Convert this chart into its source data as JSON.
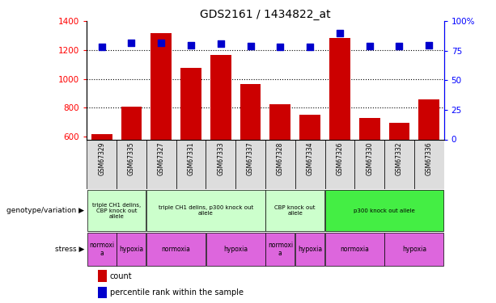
{
  "title": "GDS2161 / 1434822_at",
  "samples": [
    "GSM67329",
    "GSM67335",
    "GSM67327",
    "GSM67331",
    "GSM67333",
    "GSM67337",
    "GSM67328",
    "GSM67334",
    "GSM67326",
    "GSM67330",
    "GSM67332",
    "GSM67336"
  ],
  "counts": [
    615,
    805,
    1320,
    1075,
    1165,
    965,
    825,
    750,
    1285,
    730,
    695,
    855
  ],
  "percentiles": [
    78,
    82,
    82,
    80,
    81,
    79,
    78,
    78,
    90,
    79,
    79,
    80
  ],
  "ylim_left": [
    580,
    1400
  ],
  "ylim_right": [
    0,
    100
  ],
  "yticks_left": [
    600,
    800,
    1000,
    1200,
    1400
  ],
  "yticks_right": [
    0,
    25,
    50,
    75,
    100
  ],
  "ytick_right_labels": [
    "0",
    "25",
    "50",
    "75",
    "100%"
  ],
  "bar_color": "#cc0000",
  "dot_color": "#0000cc",
  "background_color": "#ffffff",
  "genotype_groups": [
    {
      "label": "triple CH1 delins,\nCBP knock out\nallele",
      "start": 0,
      "end": 2,
      "color": "#ccffcc"
    },
    {
      "label": "triple CH1 delins, p300 knock out\nallele",
      "start": 2,
      "end": 6,
      "color": "#ccffcc"
    },
    {
      "label": "CBP knock out\nallele",
      "start": 6,
      "end": 8,
      "color": "#ccffcc"
    },
    {
      "label": "p300 knock out allele",
      "start": 8,
      "end": 12,
      "color": "#44ee44"
    }
  ],
  "stress_groups": [
    {
      "label": "normoxi\na",
      "start": 0,
      "end": 1
    },
    {
      "label": "hypoxia",
      "start": 1,
      "end": 2
    },
    {
      "label": "normoxia",
      "start": 2,
      "end": 4
    },
    {
      "label": "hypoxia",
      "start": 4,
      "end": 6
    },
    {
      "label": "normoxi\na",
      "start": 6,
      "end": 7
    },
    {
      "label": "hypoxia",
      "start": 7,
      "end": 8
    },
    {
      "label": "normoxia",
      "start": 8,
      "end": 10
    },
    {
      "label": "hypoxia",
      "start": 10,
      "end": 12
    }
  ],
  "stress_color": "#dd66dd",
  "legend_items": [
    {
      "label": "count",
      "color": "#cc0000"
    },
    {
      "label": "percentile rank within the sample",
      "color": "#0000cc"
    }
  ]
}
